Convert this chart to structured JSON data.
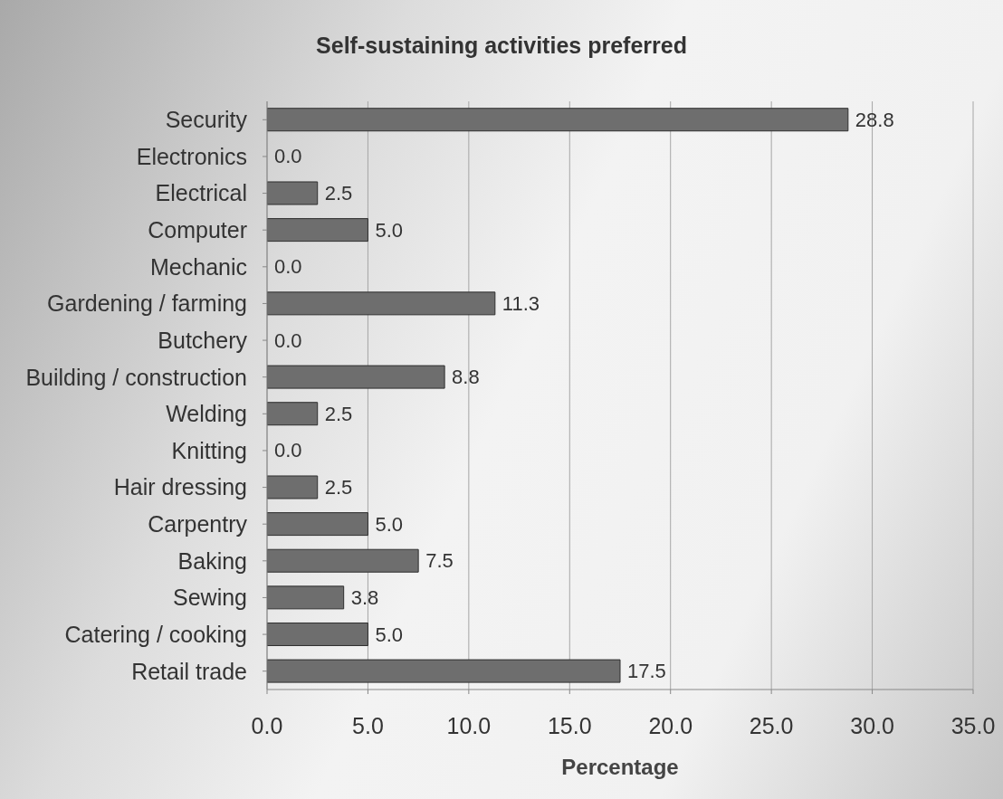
{
  "chart_data": {
    "type": "bar",
    "orientation": "horizontal",
    "title": "Self-sustaining activities preferred",
    "xlabel": "Percentage",
    "categories": [
      "Security",
      "Electronics",
      "Electrical",
      "Computer",
      "Mechanic",
      "Gardening / farming",
      "Butchery",
      "Building / construction",
      "Welding",
      "Knitting",
      "Hair dressing",
      "Carpentry",
      "Baking",
      "Sewing",
      "Catering / cooking",
      "Retail trade"
    ],
    "values": [
      28.8,
      0,
      2.5,
      5,
      0,
      11.3,
      0,
      8.8,
      2.5,
      0,
      2.5,
      5,
      7.5,
      3.8,
      5,
      17.5
    ],
    "value_labels": [
      "28.8",
      "0.0",
      "2.5",
      "5.0",
      "0.0",
      "11.3",
      "0.0",
      "8.8",
      "2.5",
      "0.0",
      "2.5",
      "5.0",
      "7.5",
      "3.8",
      "5.0",
      "17.5"
    ],
    "color": "#6e6e6e",
    "xlim": [
      0,
      35
    ],
    "xticks": [
      {
        "value": 0,
        "label": "0.0"
      },
      {
        "value": 5,
        "label": "5.0"
      },
      {
        "value": 10,
        "label": "10.0"
      },
      {
        "value": 15,
        "label": "15.0"
      },
      {
        "value": 20,
        "label": "20.0"
      },
      {
        "value": 25,
        "label": "25.0"
      },
      {
        "value": 30,
        "label": "30.0"
      },
      {
        "value": 35,
        "label": "35.0"
      }
    ],
    "grid": "x"
  }
}
